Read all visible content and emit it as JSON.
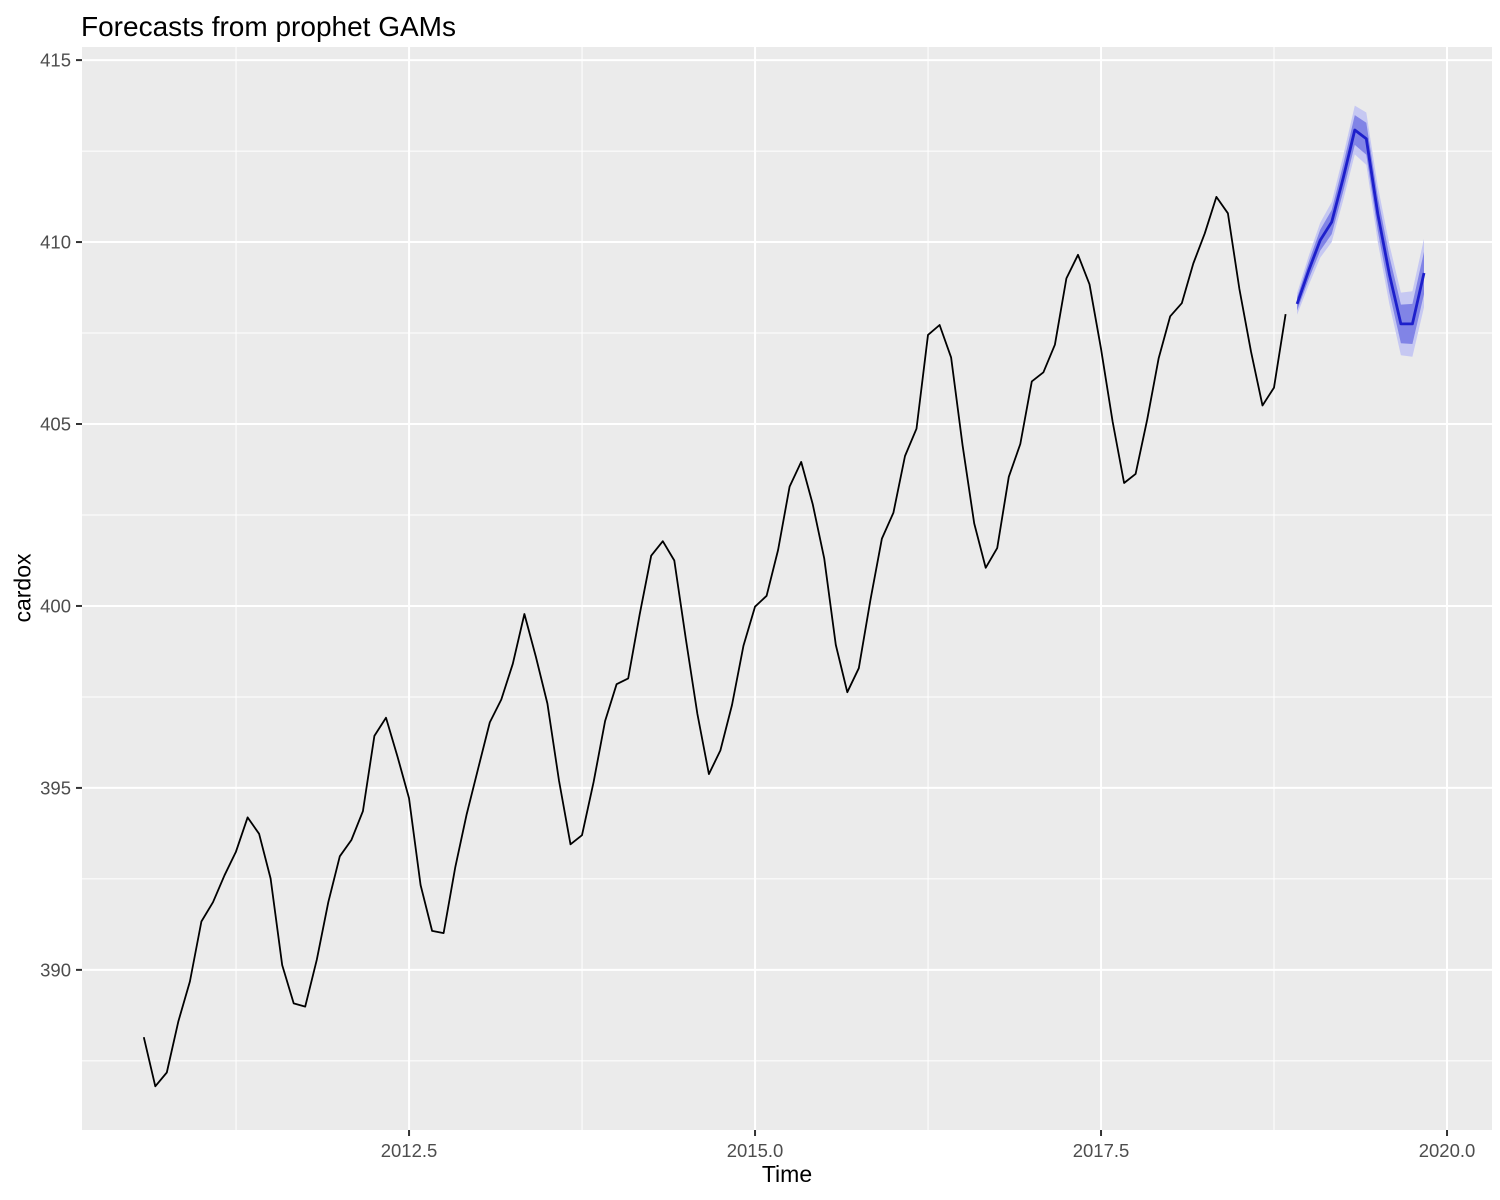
{
  "title": "Forecasts from prophet GAMs",
  "chart_data": {
    "type": "line",
    "title": "Forecasts from prophet GAMs",
    "xlabel": "Time",
    "ylabel": "cardox",
    "legend": "none",
    "grid": true,
    "panel_bg": "#EBEBEB",
    "grid_color": "#FFFFFF",
    "tick_color": "#333333",
    "tick_label_color": "#4D4D4D",
    "x_range": [
      2010.137,
      2020.325
    ],
    "y_range": [
      385.6,
      415.36
    ],
    "x_ticks": [
      2012.5,
      2015.0,
      2017.5,
      2020.0
    ],
    "x_tick_labels": [
      "2012.5",
      "2015.0",
      "2017.5",
      "2020.0"
    ],
    "x_minor_ticks": [
      2011.25,
      2013.75,
      2016.25,
      2018.75
    ],
    "y_ticks": [
      390,
      395,
      400,
      405,
      410,
      415
    ],
    "y_tick_labels": [
      "390",
      "395",
      "400",
      "405",
      "410",
      "415"
    ],
    "y_minor_ticks": [
      387.5,
      392.5,
      397.5,
      402.5,
      407.5,
      412.5
    ],
    "series": [
      {
        "name": "observed",
        "color": "#000000",
        "line_width": 1.8,
        "start_year": 2010,
        "start_month": 8,
        "frequency": 12,
        "values": [
          388.15,
          386.8,
          387.18,
          388.59,
          389.68,
          391.33,
          391.86,
          392.6,
          393.25,
          394.19,
          393.74,
          392.51,
          390.13,
          389.08,
          388.99,
          390.28,
          391.86,
          393.12,
          393.57,
          394.36,
          396.43,
          396.93,
          395.86,
          394.72,
          392.33,
          391.07,
          391.01,
          392.81,
          394.28,
          395.54,
          396.8,
          397.43,
          398.41,
          399.78,
          398.6,
          397.32,
          395.2,
          393.45,
          393.7,
          395.16,
          396.84,
          397.85,
          398.01,
          399.77,
          401.38,
          401.78,
          401.25,
          399.1,
          397.03,
          395.38,
          396.03,
          397.28,
          398.91,
          399.98,
          400.28,
          401.54,
          403.28,
          403.96,
          402.8,
          401.31,
          398.93,
          397.63,
          398.29,
          400.16,
          401.85,
          402.56,
          404.12,
          404.87,
          407.45,
          407.72,
          406.83,
          404.41,
          402.27,
          401.05,
          401.59,
          403.55,
          404.45,
          406.17,
          406.42,
          407.18,
          409.0,
          409.65,
          408.84,
          407.07,
          405.07,
          403.38,
          403.63,
          405.12,
          406.81,
          407.96,
          408.32,
          409.41,
          410.24,
          411.24,
          410.79,
          408.71,
          406.99,
          405.51,
          406.0,
          408.02
        ]
      },
      {
        "name": "forecast-mean",
        "color": "#1D1FCB",
        "line_width": 2.8,
        "start_year": 2018,
        "start_month": 12,
        "frequency": 12,
        "values": [
          408.3,
          409.21,
          410.05,
          410.55,
          411.76,
          413.08,
          412.84,
          410.77,
          409.11,
          407.75,
          407.75,
          409.15
        ]
      }
    ],
    "intervals": {
      "outer_color": "#C6C8F2",
      "inner_color": "#8184E6",
      "lo95": [
        408.0,
        408.81,
        409.57,
        410.0,
        411.15,
        412.41,
        412.12,
        410.0,
        408.29,
        406.89,
        406.85,
        408.21
      ],
      "hi95": [
        408.6,
        409.61,
        410.53,
        411.1,
        412.37,
        413.75,
        413.56,
        411.54,
        409.93,
        408.61,
        408.65,
        410.09
      ],
      "lo80": [
        408.12,
        408.97,
        409.76,
        410.22,
        411.39,
        412.67,
        412.4,
        410.3,
        408.61,
        407.22,
        407.2,
        408.57
      ],
      "hi80": [
        408.48,
        409.45,
        410.34,
        410.88,
        412.13,
        413.49,
        413.28,
        411.24,
        409.61,
        408.28,
        408.3,
        409.73
      ]
    }
  }
}
